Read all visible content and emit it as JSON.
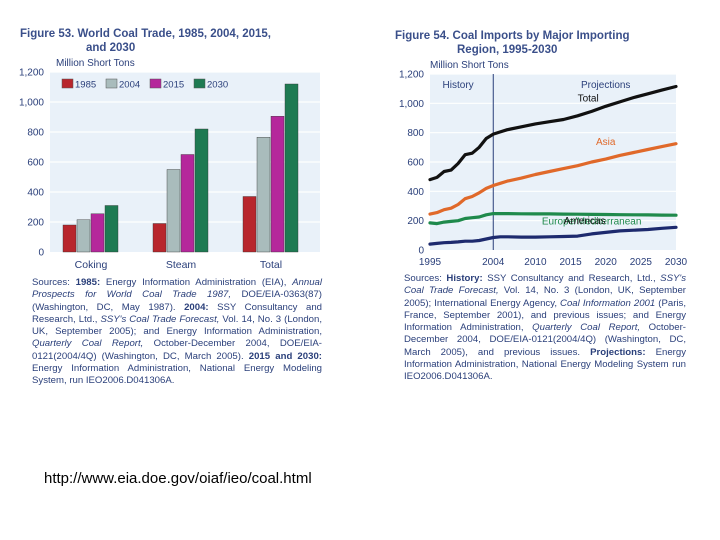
{
  "left_figure": {
    "title_line1": "Figure 53.  World Coal Trade, 1985, 2004, 2015,",
    "title_line2": "and 2030",
    "unit": "Million Short Tons",
    "sources": {
      "s1": "Sources: ",
      "s2": "1985:",
      "s3": " Energy Information Administration (EIA), ",
      "s4": "Annual Prospects for World Coal Trade 1987,",
      "s5": " DOE/EIA-0363(87) (Washington, DC, May 1987). ",
      "s6": "2004:",
      "s7": " SSY Consultancy and Research, Ltd., ",
      "s8": "SSY's Coal Trade Forecast,",
      "s9": " Vol. 14, No. 3 (London, UK, September 2005); and Energy Information Administration, ",
      "s10": "Quarterly Coal Report,",
      "s11": " October-December 2004, DOE/EIA-0121(2004/4Q) (Washington, DC, March 2005). ",
      "s12": "2015 and 2030:",
      "s13": " Energy Information Administration, National Energy Modeling System, run IEO2006.D041306A."
    }
  },
  "right_figure": {
    "title_line1": "Figure 54.  Coal Imports by Major Importing",
    "title_line2": "Region, 1995-2030",
    "unit": "Million Short Tons",
    "sources": {
      "s1": "Sources: ",
      "s2": "History:",
      "s3": " SSY Consultancy and Research, Ltd., ",
      "s4": "SSY's Coal Trade Forecast,",
      "s5": " Vol. 14, No. 3 (London, UK, September 2005); International Energy Agency, ",
      "s6": "Coal Information 2001",
      "s7": " (Paris, France, September 2001), and previous issues; and Energy Information Administration, ",
      "s8": "Quarterly Coal Report,",
      "s9": " October-December 2004, DOE/EIA-0121(2004/4Q) (Washington, DC, March 2005), and previous issues. ",
      "s10": "Projections:",
      "s11": " Energy Information Administration, National Energy Modeling System run IEO2006.D041306A."
    }
  },
  "footer": {
    "url": "http://www.eia.doe.gov/oiaf/ieo/coal.html"
  },
  "colors": {
    "c1985": "#b8262c",
    "c2004": "#a9bcbc",
    "c2015": "#b5279b",
    "c2030": "#1e7a52",
    "panel_bg": "#e9f1f9",
    "grid": "#ffffff",
    "total": "#111111",
    "asia": "#e0692a",
    "europe": "#1f8a4c",
    "americas": "#1d2a6e"
  },
  "chart_data": [
    {
      "type": "bar",
      "title": "World Coal Trade, 1985, 2004, 2015, and 2030",
      "ylabel": "Million Short Tons",
      "ylim": [
        0,
        1200
      ],
      "yticks": [
        "0",
        "200",
        "400",
        "600",
        "800",
        "1,000",
        "1,200"
      ],
      "yticks_values": [
        0,
        200,
        400,
        600,
        800,
        1000,
        1200
      ],
      "categories": [
        "Coking",
        "Steam",
        "Total"
      ],
      "legend_position": "top-left",
      "series": [
        {
          "name": "1985",
          "values": [
            180,
            190,
            370
          ]
        },
        {
          "name": "2004",
          "values": [
            215,
            550,
            765
          ]
        },
        {
          "name": "2015",
          "values": [
            255,
            650,
            905
          ]
        },
        {
          "name": "2030",
          "values": [
            310,
            820,
            1120
          ]
        }
      ]
    },
    {
      "type": "line",
      "title": "Coal Imports by Major Importing Region, 1995-2030",
      "ylabel": "Million Short Tons",
      "ylim": [
        0,
        1200
      ],
      "xlim": [
        1995,
        2030
      ],
      "yticks": [
        "0",
        "200",
        "400",
        "600",
        "800",
        "1,000",
        "1,200"
      ],
      "yticks_values": [
        0,
        200,
        400,
        600,
        800,
        1000,
        1200
      ],
      "xticks": [
        "1995",
        "2004",
        "2010",
        "2015",
        "2020",
        "2025",
        "2030"
      ],
      "xticks_values": [
        1995,
        2004,
        2010,
        2015,
        2020,
        2025,
        2030
      ],
      "annotations": {
        "history": "History",
        "projections": "Projections",
        "divider_year": 2004
      },
      "x": [
        1995,
        1996,
        1997,
        1998,
        1999,
        2000,
        2001,
        2002,
        2003,
        2004,
        2005,
        2006,
        2008,
        2010,
        2012,
        2014,
        2016,
        2018,
        2020,
        2022,
        2024,
        2026,
        2028,
        2030
      ],
      "series": [
        {
          "name": "Total",
          "values": [
            480,
            495,
            535,
            545,
            590,
            650,
            660,
            700,
            760,
            790,
            805,
            820,
            840,
            860,
            875,
            890,
            915,
            945,
            980,
            1010,
            1040,
            1065,
            1090,
            1115
          ]
        },
        {
          "name": "Asia",
          "values": [
            245,
            255,
            275,
            285,
            310,
            350,
            365,
            390,
            420,
            440,
            455,
            470,
            490,
            515,
            535,
            555,
            575,
            600,
            620,
            645,
            665,
            685,
            705,
            725
          ]
        },
        {
          "name": "Europe/Mediterranean",
          "values": [
            185,
            180,
            190,
            195,
            200,
            215,
            220,
            225,
            240,
            248,
            248,
            248,
            247,
            246,
            246,
            245,
            244,
            243,
            242,
            241,
            240,
            239,
            238,
            237
          ]
        },
        {
          "name": "Americas",
          "values": [
            40,
            45,
            50,
            52,
            55,
            60,
            60,
            65,
            75,
            85,
            90,
            90,
            88,
            88,
            90,
            92,
            95,
            110,
            120,
            130,
            135,
            140,
            148,
            155
          ]
        }
      ]
    }
  ]
}
